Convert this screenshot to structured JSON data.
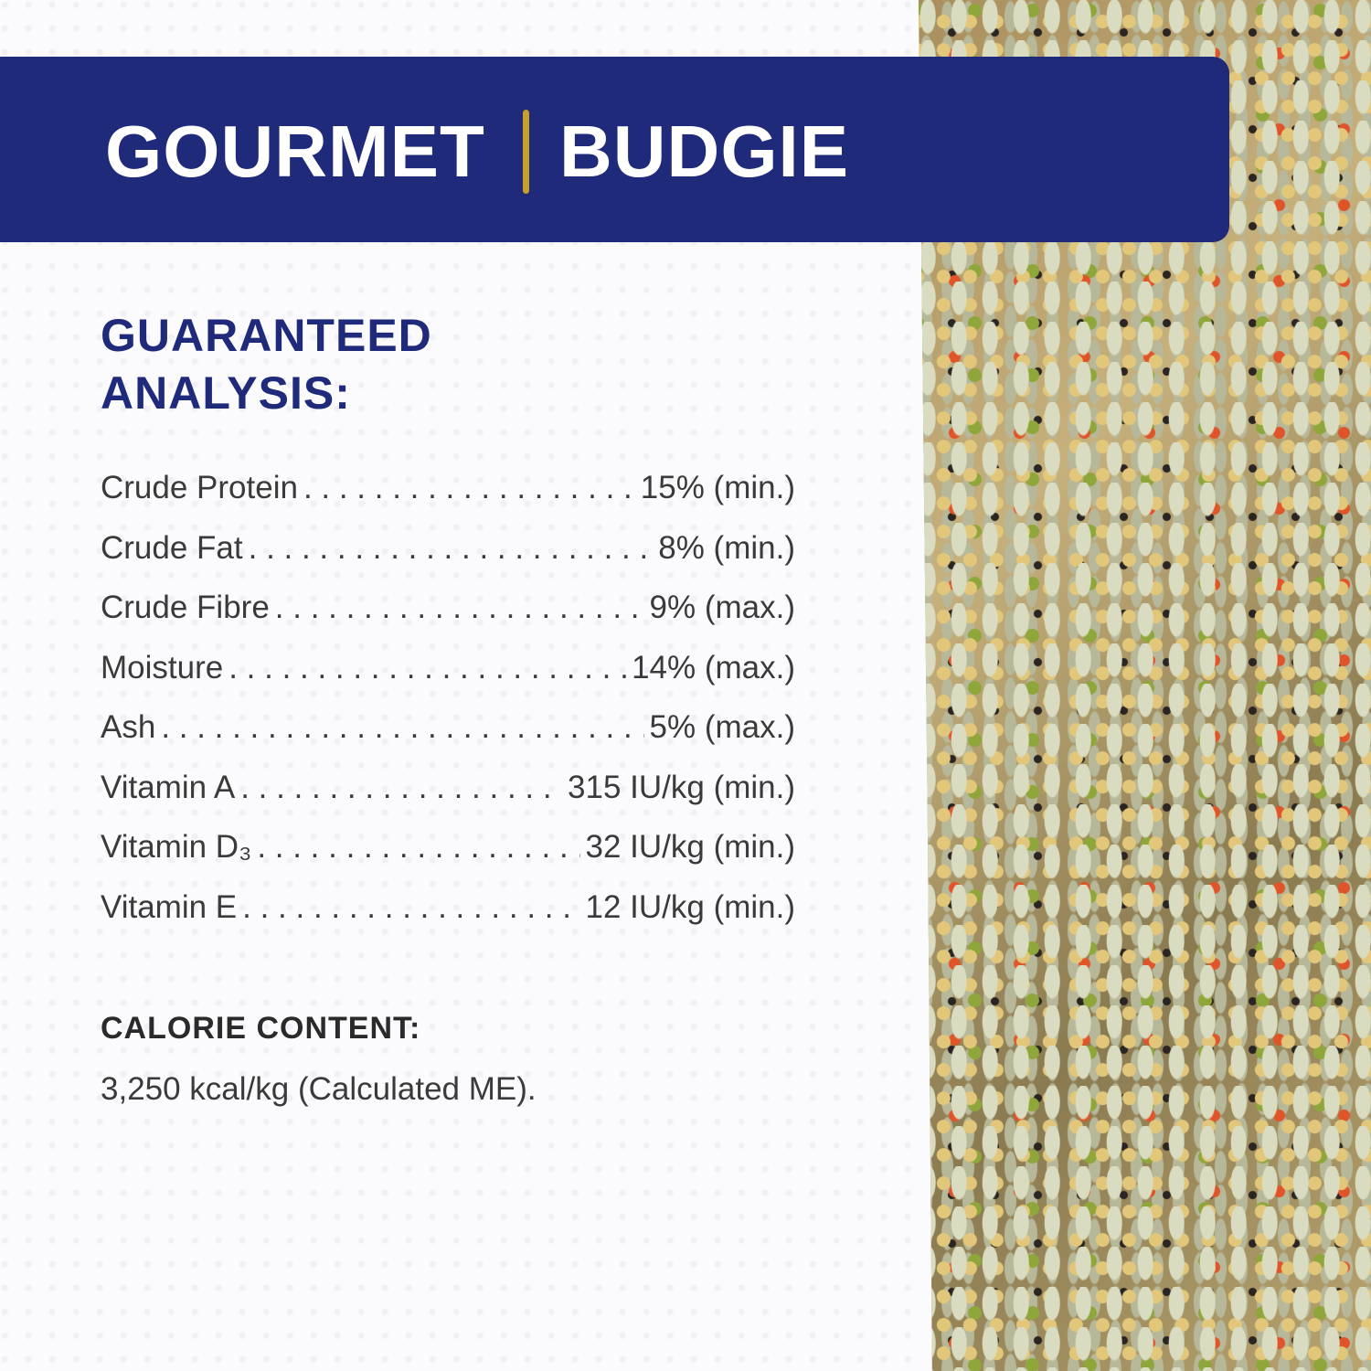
{
  "header": {
    "brand": "GOURMET",
    "product": "BUDGIE",
    "color": "#1f2a7a",
    "divider_color": "#c7a02a"
  },
  "analysis": {
    "heading_line1": "GUARANTEED",
    "heading_line2": "ANALYSIS:",
    "rows": [
      {
        "label": "Crude Protein",
        "value": "15% (min.)"
      },
      {
        "label": "Crude Fat",
        "value": "8% (min.)"
      },
      {
        "label": "Crude Fibre",
        "value": "9% (max.)"
      },
      {
        "label": "Moisture",
        "value": "14% (max.)"
      },
      {
        "label": "Ash",
        "value": "5% (max.)"
      },
      {
        "label": "Vitamin A",
        "value": "315 IU/kg (min.)"
      },
      {
        "label": "Vitamin D₃",
        "value": "32 IU/kg (min.)"
      },
      {
        "label": "Vitamin E",
        "value": "12 IU/kg (min.)"
      }
    ]
  },
  "calorie": {
    "heading": "CALORIE CONTENT:",
    "value": "3,250 kcal/kg (Calculated ME)."
  }
}
